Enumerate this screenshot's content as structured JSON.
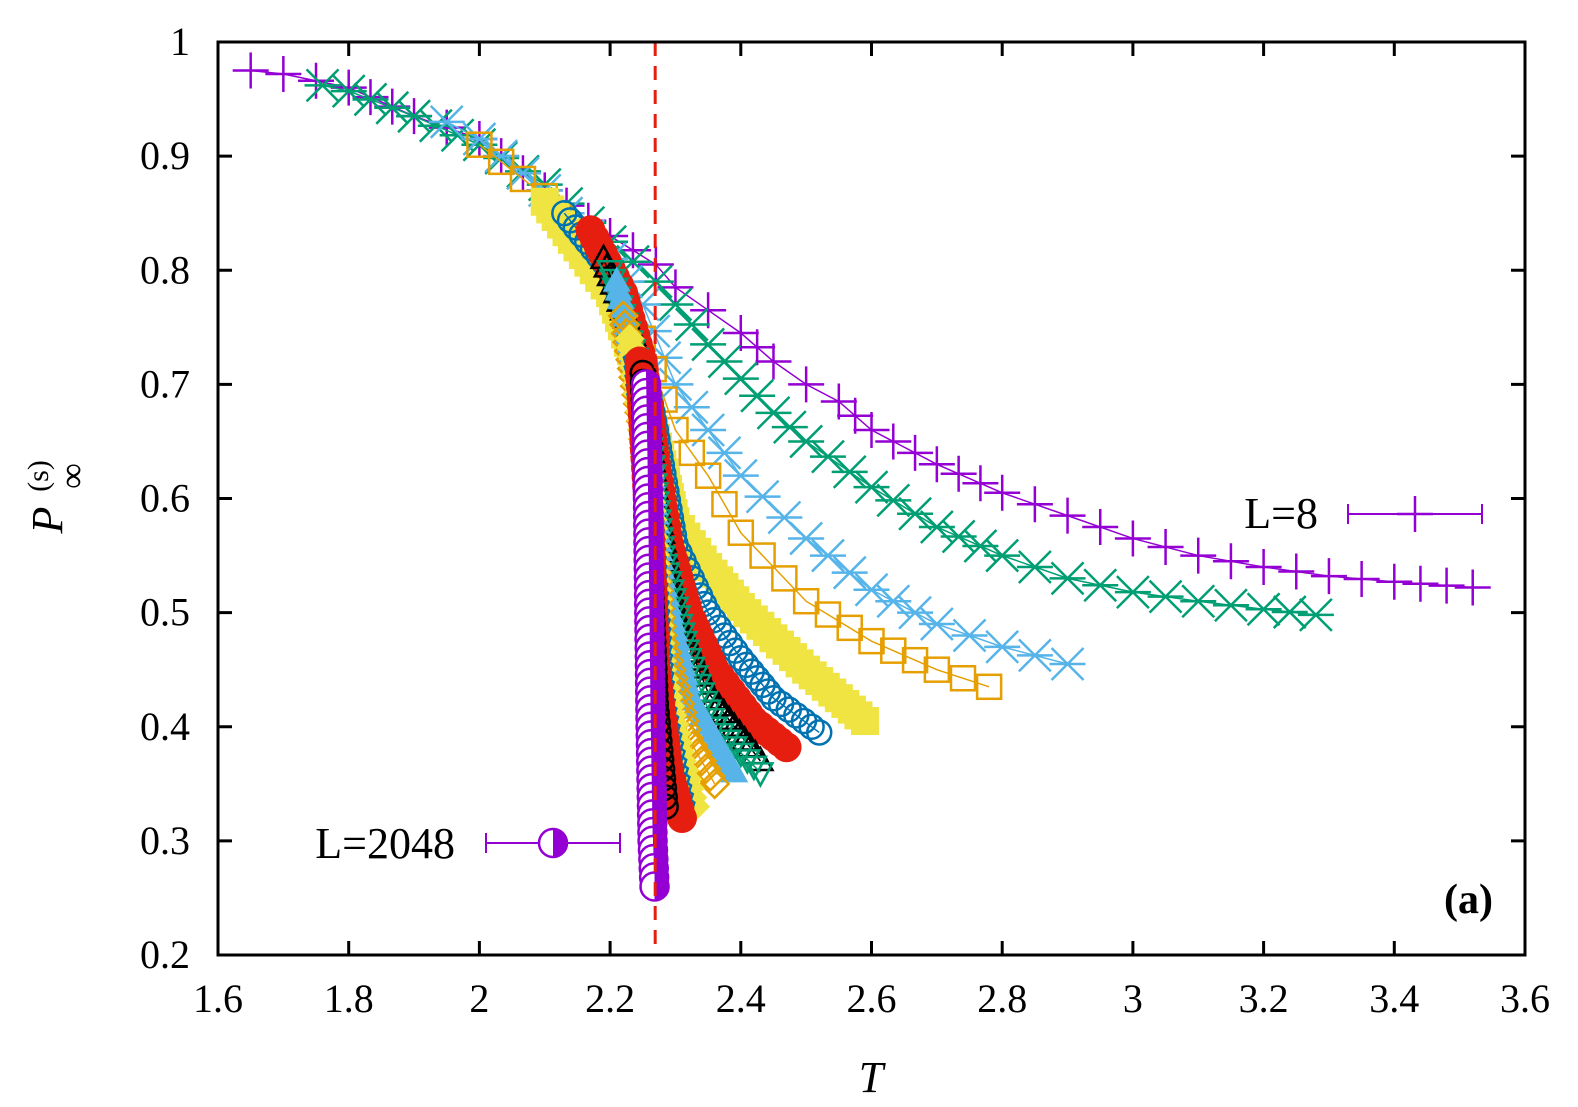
{
  "chart_data": {
    "type": "scatter",
    "title": "",
    "xlabel": "T",
    "ylabel": "P",
    "ylabel_sub": "∞",
    "ylabel_sup": "(s)",
    "xlim": [
      1.6,
      3.6
    ],
    "ylim": [
      0.2,
      1.0
    ],
    "xticks": [
      1.6,
      1.8,
      2.0,
      2.2,
      2.4,
      2.6,
      2.8,
      3.0,
      3.2,
      3.4,
      3.6
    ],
    "xtick_labels": [
      "1.6",
      "1.8",
      "2",
      "2.2",
      "2.4",
      "2.6",
      "2.8",
      "3",
      "3.2",
      "3.4",
      "3.6"
    ],
    "yticks": [
      0.2,
      0.3,
      0.4,
      0.5,
      0.6,
      0.7,
      0.8,
      0.9,
      1.0
    ],
    "ytick_labels": [
      "0.2",
      "0.3",
      "0.4",
      "0.5",
      "0.6",
      "0.7",
      "0.8",
      "0.9",
      "1"
    ],
    "grid": false,
    "vertical_line": {
      "x": 2.269,
      "color": "#e51e10",
      "style": "dashed"
    },
    "panel_label": "(a)",
    "legend": [
      {
        "label": "L=8",
        "series": 0,
        "placement": "right, middle"
      },
      {
        "label": "L=2048",
        "series": 15,
        "placement": "left, lower"
      }
    ],
    "series": [
      {
        "name": "L=8",
        "marker": "plus",
        "color": "#9400d3",
        "points": [
          [
            1.65,
            0.975
          ],
          [
            1.7,
            0.972
          ],
          [
            1.8,
            0.96
          ],
          [
            1.9,
            0.935
          ],
          [
            2.0,
            0.915
          ],
          [
            2.1,
            0.87
          ],
          [
            2.2,
            0.83
          ],
          [
            2.27,
            0.805
          ],
          [
            2.3,
            0.785
          ],
          [
            2.35,
            0.765
          ],
          [
            2.4,
            0.745
          ],
          [
            2.45,
            0.72
          ],
          [
            2.5,
            0.7
          ],
          [
            2.55,
            0.685
          ],
          [
            2.6,
            0.66
          ],
          [
            2.7,
            0.63
          ],
          [
            2.8,
            0.605
          ],
          [
            2.9,
            0.585
          ],
          [
            3.0,
            0.565
          ],
          [
            3.1,
            0.55
          ],
          [
            3.2,
            0.54
          ],
          [
            3.3,
            0.532
          ],
          [
            3.4,
            0.527
          ],
          [
            3.52,
            0.522
          ]
        ]
      },
      {
        "marker": "cross",
        "color": "#009e73",
        "points": [
          [
            1.76,
            0.962
          ],
          [
            1.8,
            0.957
          ],
          [
            1.9,
            0.935
          ],
          [
            2.0,
            0.91
          ],
          [
            2.1,
            0.875
          ],
          [
            2.2,
            0.825
          ],
          [
            2.27,
            0.79
          ],
          [
            2.3,
            0.77
          ],
          [
            2.35,
            0.735
          ],
          [
            2.4,
            0.705
          ],
          [
            2.45,
            0.675
          ],
          [
            2.5,
            0.65
          ],
          [
            2.6,
            0.61
          ],
          [
            2.7,
            0.575
          ],
          [
            2.8,
            0.55
          ],
          [
            2.9,
            0.53
          ],
          [
            3.0,
            0.518
          ],
          [
            3.1,
            0.51
          ],
          [
            3.2,
            0.503
          ],
          [
            3.28,
            0.498
          ]
        ]
      },
      {
        "marker": "star",
        "color": "#56b4e9",
        "points": [
          [
            1.95,
            0.93
          ],
          [
            2.0,
            0.915
          ],
          [
            2.1,
            0.87
          ],
          [
            2.2,
            0.81
          ],
          [
            2.25,
            0.77
          ],
          [
            2.3,
            0.7
          ],
          [
            2.35,
            0.66
          ],
          [
            2.4,
            0.62
          ],
          [
            2.5,
            0.565
          ],
          [
            2.6,
            0.52
          ],
          [
            2.7,
            0.49
          ],
          [
            2.8,
            0.47
          ],
          [
            2.9,
            0.455
          ]
        ]
      },
      {
        "marker": "square-open",
        "color": "#e69f00",
        "points": [
          [
            2.0,
            0.91
          ],
          [
            2.1,
            0.865
          ],
          [
            2.2,
            0.79
          ],
          [
            2.25,
            0.74
          ],
          [
            2.3,
            0.66
          ],
          [
            2.35,
            0.62
          ],
          [
            2.4,
            0.57
          ],
          [
            2.5,
            0.51
          ],
          [
            2.6,
            0.475
          ],
          [
            2.7,
            0.45
          ],
          [
            2.78,
            0.435
          ]
        ]
      },
      {
        "marker": "square-filled",
        "color": "#f0e442",
        "points": [
          [
            2.1,
            0.86
          ],
          [
            2.2,
            0.78
          ],
          [
            2.25,
            0.7
          ],
          [
            2.28,
            0.63
          ],
          [
            2.3,
            0.58
          ],
          [
            2.35,
            0.54
          ],
          [
            2.4,
            0.505
          ],
          [
            2.5,
            0.45
          ],
          [
            2.59,
            0.405
          ]
        ]
      },
      {
        "marker": "circle-open",
        "color": "#0072b2",
        "points": [
          [
            2.13,
            0.85
          ],
          [
            2.2,
            0.8
          ],
          [
            2.25,
            0.72
          ],
          [
            2.27,
            0.66
          ],
          [
            2.3,
            0.56
          ],
          [
            2.35,
            0.5
          ],
          [
            2.4,
            0.46
          ],
          [
            2.45,
            0.425
          ],
          [
            2.52,
            0.395
          ]
        ]
      },
      {
        "marker": "circle-filled",
        "color": "#e51e10",
        "points": [
          [
            2.17,
            0.835
          ],
          [
            2.22,
            0.78
          ],
          [
            2.25,
            0.72
          ],
          [
            2.27,
            0.63
          ],
          [
            2.29,
            0.56
          ],
          [
            2.32,
            0.5
          ],
          [
            2.36,
            0.45
          ],
          [
            2.42,
            0.405
          ],
          [
            2.47,
            0.382
          ]
        ]
      },
      {
        "marker": "triangle-open",
        "color": "#000000",
        "points": [
          [
            2.19,
            0.81
          ],
          [
            2.25,
            0.72
          ],
          [
            2.27,
            0.6
          ],
          [
            2.3,
            0.5
          ],
          [
            2.35,
            0.43
          ],
          [
            2.43,
            0.37
          ]
        ]
      },
      {
        "marker": "triangle-down-open",
        "color": "#009e73",
        "points": [
          [
            2.2,
            0.8
          ],
          [
            2.25,
            0.7
          ],
          [
            2.28,
            0.55
          ],
          [
            2.32,
            0.46
          ],
          [
            2.36,
            0.4
          ],
          [
            2.43,
            0.36
          ]
        ]
      },
      {
        "marker": "triangle-filled",
        "color": "#56b4e9",
        "points": [
          [
            2.21,
            0.79
          ],
          [
            2.25,
            0.69
          ],
          [
            2.28,
            0.53
          ],
          [
            2.32,
            0.43
          ],
          [
            2.39,
            0.36
          ]
        ]
      },
      {
        "marker": "diamond-open",
        "color": "#e69f00",
        "points": [
          [
            2.22,
            0.76
          ],
          [
            2.25,
            0.66
          ],
          [
            2.28,
            0.48
          ],
          [
            2.32,
            0.39
          ],
          [
            2.36,
            0.35
          ]
        ]
      },
      {
        "marker": "diamond-filled",
        "color": "#f0e442",
        "points": [
          [
            2.23,
            0.74
          ],
          [
            2.26,
            0.62
          ],
          [
            2.28,
            0.45
          ],
          [
            2.31,
            0.37
          ],
          [
            2.33,
            0.33
          ]
        ]
      },
      {
        "marker": "pentagon-open",
        "color": "#0072b2",
        "points": [
          [
            2.24,
            0.72
          ],
          [
            2.26,
            0.6
          ],
          [
            2.28,
            0.42
          ],
          [
            2.31,
            0.33
          ]
        ]
      },
      {
        "marker": "circle-filled",
        "color": "#e51e10",
        "points": [
          [
            2.245,
            0.72
          ],
          [
            2.26,
            0.58
          ],
          [
            2.27,
            0.45
          ],
          [
            2.29,
            0.36
          ],
          [
            2.31,
            0.32
          ]
        ]
      },
      {
        "marker": "circle-open",
        "color": "#000000",
        "points": [
          [
            2.25,
            0.71
          ],
          [
            2.26,
            0.56
          ],
          [
            2.27,
            0.42
          ],
          [
            2.285,
            0.33
          ]
        ]
      },
      {
        "name": "L=2048",
        "marker": "circle-half",
        "color": "#9400d3",
        "points": [
          [
            2.255,
            0.7
          ],
          [
            2.258,
            0.6
          ],
          [
            2.26,
            0.5
          ],
          [
            2.262,
            0.4
          ],
          [
            2.265,
            0.3
          ],
          [
            2.268,
            0.26
          ]
        ]
      }
    ]
  }
}
